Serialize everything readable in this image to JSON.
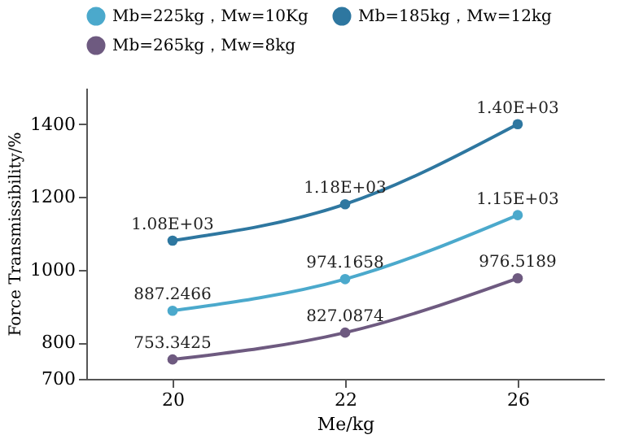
{
  "chart_data": {
    "type": "line",
    "xlabel": "Me/kg",
    "ylabel": "Force Transmissibility/%",
    "categories": [
      "20",
      "22",
      "26"
    ],
    "series": [
      {
        "name": "Mb=225kg，Mw=10Kg",
        "color": "#4ba9cc",
        "values": [
          887.2466,
          974.1658,
          1150
        ],
        "value_labels": [
          "887.2466",
          "974.1658",
          "1.15E+03"
        ]
      },
      {
        "name": "Mb=185kg，Mw=12kg",
        "color": "#2e77a0",
        "values": [
          1080,
          1180,
          1400
        ],
        "value_labels": [
          "1.08E+03",
          "1.18E+03",
          "1.40E+03"
        ]
      },
      {
        "name": "Mb=265kg，Mw=8kg",
        "color": "#6e5a80",
        "values": [
          753.3425,
          827.0874,
          976.5189
        ],
        "value_labels": [
          "753.3425",
          "827.0874",
          "976.5189"
        ]
      }
    ],
    "ylim": [
      700,
      1500
    ],
    "yticks": [
      700,
      800,
      1000,
      1200,
      1400
    ],
    "grid": false,
    "legend": "top",
    "marker": "circle",
    "line_style": "solid"
  }
}
